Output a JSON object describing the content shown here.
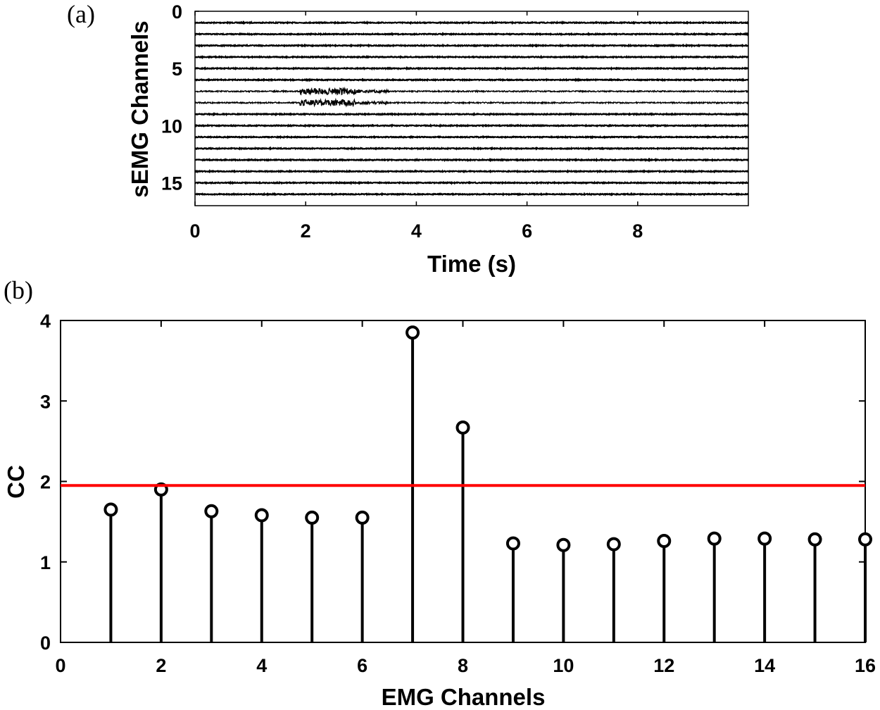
{
  "chart_data": [
    {
      "panel_label": "(a)",
      "type": "line",
      "xlabel": "Time (s)",
      "ylabel": "sEMG Channels",
      "xlim": [
        0,
        10
      ],
      "ylim": [
        0,
        17
      ],
      "y_reversed": true,
      "x_ticks": [
        "0",
        "2",
        "4",
        "6",
        "8"
      ],
      "y_ticks": [
        "0",
        "5",
        "10",
        "15"
      ],
      "n_channels": 16,
      "active_channels": [
        7,
        8
      ],
      "burst_time_range": [
        1.9,
        2.9
      ]
    },
    {
      "panel_label": "(b)",
      "type": "stem",
      "xlabel": "EMG Channels",
      "ylabel": "CC",
      "xlim": [
        0,
        16
      ],
      "ylim": [
        0,
        4
      ],
      "x_ticks": [
        "0",
        "2",
        "4",
        "6",
        "8",
        "10",
        "12",
        "14",
        "16"
      ],
      "y_ticks": [
        "0",
        "1",
        "2",
        "3",
        "4"
      ],
      "x": [
        1,
        2,
        3,
        4,
        5,
        6,
        7,
        8,
        9,
        10,
        11,
        12,
        13,
        14,
        15,
        16
      ],
      "values": [
        1.65,
        1.9,
        1.63,
        1.58,
        1.55,
        1.55,
        3.85,
        2.67,
        1.23,
        1.21,
        1.22,
        1.26,
        1.29,
        1.29,
        1.28,
        1.28
      ],
      "threshold": 1.95,
      "threshold_color": "#ff0000",
      "stem_color": "#000000"
    }
  ]
}
